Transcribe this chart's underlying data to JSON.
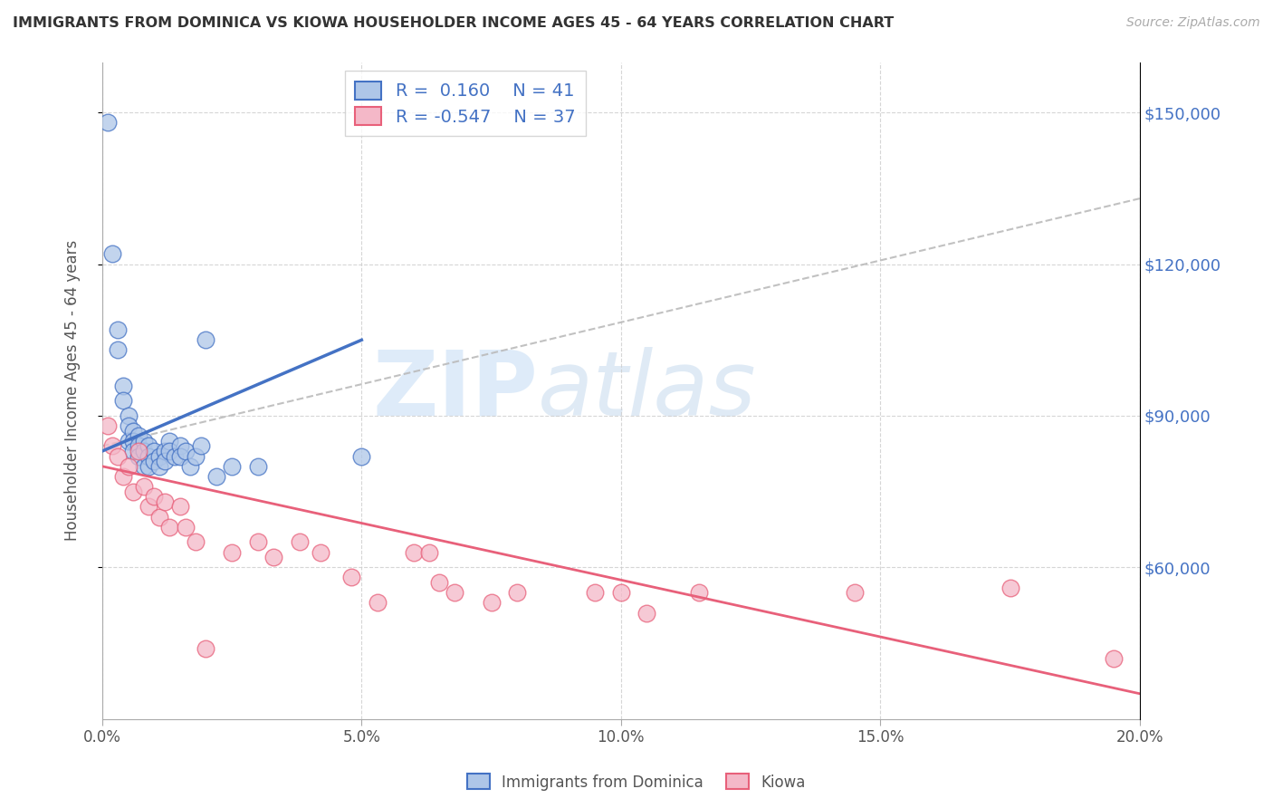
{
  "title": "IMMIGRANTS FROM DOMINICA VS KIOWA HOUSEHOLDER INCOME AGES 45 - 64 YEARS CORRELATION CHART",
  "source": "Source: ZipAtlas.com",
  "ylabel": "Householder Income Ages 45 - 64 years",
  "xlim": [
    0.0,
    0.2
  ],
  "ylim": [
    30000,
    160000
  ],
  "ytick_labels": [
    "$60,000",
    "$90,000",
    "$120,000",
    "$150,000"
  ],
  "ytick_values": [
    60000,
    90000,
    120000,
    150000
  ],
  "xtick_labels": [
    "0.0%",
    "5.0%",
    "10.0%",
    "15.0%",
    "20.0%"
  ],
  "xtick_values": [
    0.0,
    0.05,
    0.1,
    0.15,
    0.2
  ],
  "legend_labels": [
    "Immigrants from Dominica",
    "Kiowa"
  ],
  "blue_R": 0.16,
  "blue_N": 41,
  "pink_R": -0.547,
  "pink_N": 37,
  "blue_color": "#aec6e8",
  "pink_color": "#f4b8c8",
  "blue_line_color": "#4472c4",
  "pink_line_color": "#e8607a",
  "grid_color": "#cccccc",
  "background_color": "#ffffff",
  "watermark_zip": "ZIP",
  "watermark_atlas": "atlas",
  "blue_scatter_x": [
    0.001,
    0.002,
    0.003,
    0.003,
    0.004,
    0.004,
    0.005,
    0.005,
    0.005,
    0.006,
    0.006,
    0.006,
    0.007,
    0.007,
    0.007,
    0.008,
    0.008,
    0.008,
    0.009,
    0.009,
    0.009,
    0.01,
    0.01,
    0.011,
    0.011,
    0.012,
    0.012,
    0.013,
    0.013,
    0.014,
    0.015,
    0.015,
    0.016,
    0.017,
    0.018,
    0.019,
    0.02,
    0.022,
    0.025,
    0.03,
    0.05
  ],
  "blue_scatter_y": [
    148000,
    122000,
    107000,
    103000,
    96000,
    93000,
    90000,
    88000,
    85000,
    87000,
    85000,
    83000,
    86000,
    84000,
    82000,
    85000,
    83000,
    80000,
    84000,
    82000,
    80000,
    83000,
    81000,
    82000,
    80000,
    83000,
    81000,
    85000,
    83000,
    82000,
    84000,
    82000,
    83000,
    80000,
    82000,
    84000,
    105000,
    78000,
    80000,
    80000,
    82000
  ],
  "pink_scatter_x": [
    0.001,
    0.002,
    0.003,
    0.004,
    0.005,
    0.006,
    0.007,
    0.008,
    0.009,
    0.01,
    0.011,
    0.012,
    0.013,
    0.015,
    0.016,
    0.018,
    0.02,
    0.025,
    0.03,
    0.033,
    0.038,
    0.042,
    0.048,
    0.053,
    0.06,
    0.063,
    0.065,
    0.068,
    0.075,
    0.08,
    0.095,
    0.1,
    0.105,
    0.115,
    0.145,
    0.175,
    0.195
  ],
  "pink_scatter_y": [
    88000,
    84000,
    82000,
    78000,
    80000,
    75000,
    83000,
    76000,
    72000,
    74000,
    70000,
    73000,
    68000,
    72000,
    68000,
    65000,
    44000,
    63000,
    65000,
    62000,
    65000,
    63000,
    58000,
    53000,
    63000,
    63000,
    57000,
    55000,
    53000,
    55000,
    55000,
    55000,
    51000,
    55000,
    55000,
    56000,
    42000
  ],
  "blue_line_x0": 0.0,
  "blue_line_y0": 83000,
  "blue_line_x1": 0.05,
  "blue_line_y1": 105000,
  "pink_line_x0": 0.0,
  "pink_line_y0": 80000,
  "pink_line_x1": 0.2,
  "pink_line_y1": 35000,
  "gray_line_x0": 0.0,
  "gray_line_y0": 84000,
  "gray_line_x1": 0.2,
  "gray_line_y1": 133000
}
